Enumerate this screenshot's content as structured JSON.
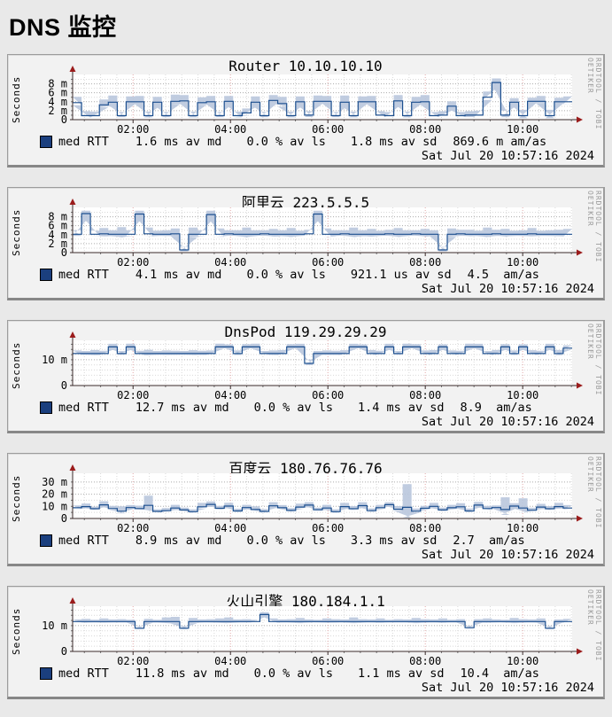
{
  "page": {
    "heading": "DNS 监控"
  },
  "watermark": "RRDTOOL / TOBI OETIKER",
  "colors": {
    "page_background": "#e9e9e9",
    "panel_background": "#f2f2f2",
    "plot_background": "#ffffff",
    "median_line": "#1c4f8f",
    "smoke": "#b9c7dd",
    "legend_swatch": "#1b3f7e",
    "grid_minor": "#d9d9d9",
    "grid_major": "#ababab",
    "grid_major_x": "#e2a9a9",
    "axis": "#3a2a2a",
    "arrow": "#9b1c1c",
    "text": "#000000"
  },
  "chart_data": [
    {
      "type": "line",
      "title": "Router 10.10.10.10",
      "ylabel": "Seconds",
      "ylim": [
        0,
        9.5
      ],
      "y_unit": "ms",
      "yticks": [
        {
          "v": 0,
          "label": "0"
        },
        {
          "v": 2,
          "label": "2 m"
        },
        {
          "v": 4,
          "label": "4 m"
        },
        {
          "v": 6,
          "label": "6 m"
        },
        {
          "v": 8,
          "label": "8 m"
        }
      ],
      "y_minor_step": 1,
      "xticks": [
        {
          "f": 0.121,
          "label": "02:00"
        },
        {
          "f": 0.316,
          "label": "04:00"
        },
        {
          "f": 0.511,
          "label": "06:00"
        },
        {
          "f": 0.706,
          "label": "08:00"
        },
        {
          "f": 0.901,
          "label": "10:00"
        }
      ],
      "x_minor_per_major": 6,
      "series": [
        {
          "name": "med RTT",
          "median": [
            3.8,
            0.9,
            0.9,
            3.3,
            3.9,
            0.9,
            4.0,
            4.0,
            0.9,
            3.9,
            0.9,
            4.1,
            4.2,
            0.9,
            3.8,
            4.0,
            0.9,
            4.1,
            0.9,
            1.5,
            3.9,
            0.9,
            4.3,
            3.6,
            0.9,
            4.0,
            1.0,
            4.1,
            4.1,
            0.9,
            3.9,
            0.9,
            4.0,
            4.0,
            1.0,
            0.9,
            4.2,
            0.9,
            3.9,
            4.0,
            0.9,
            1.0,
            3.0,
            0.9,
            1.0,
            1.0,
            5.0,
            8.3,
            1.0,
            3.9,
            0.9,
            4.1,
            4.1,
            0.9,
            4.0,
            4.0
          ],
          "smoke_halfwidth": [
            1.3,
            1.0,
            0.9,
            1.2,
            1.5,
            0.8,
            1.2,
            1.3,
            0.9,
            1.2,
            0.8,
            1.5,
            1.3,
            0.9,
            1.2,
            1.3,
            0.8,
            1.2,
            0.9,
            1.0,
            1.3,
            0.8,
            1.2,
            1.5,
            0.9,
            1.2,
            0.9,
            1.3,
            1.2,
            0.8,
            1.5,
            0.9,
            1.2,
            1.3,
            0.9,
            0.8,
            1.3,
            0.9,
            1.2,
            1.5,
            0.8,
            0.9,
            1.1,
            0.8,
            0.9,
            1.0,
            1.3,
            0.9,
            1.0,
            0.9,
            1.3,
            0.8,
            1.2,
            1.3,
            0.9,
            1.2
          ]
        }
      ],
      "legend_stats": [
        "1.6 ms av md",
        "0.0 % av ls",
        "1.8 ms av sd",
        "869.6 m am/as"
      ],
      "timestamp": "Sat Jul 20 10:57:16 2024"
    },
    {
      "type": "line",
      "title": "阿里云 223.5.5.5",
      "ylabel": "Seconds",
      "ylim": [
        0,
        9.5
      ],
      "y_unit": "ms",
      "yticks": [
        {
          "v": 0,
          "label": "0"
        },
        {
          "v": 2,
          "label": "2 m"
        },
        {
          "v": 4,
          "label": "4 m"
        },
        {
          "v": 6,
          "label": "6 m"
        },
        {
          "v": 8,
          "label": "8 m"
        }
      ],
      "y_minor_step": 1,
      "xticks": [
        {
          "f": 0.121,
          "label": "02:00"
        },
        {
          "f": 0.316,
          "label": "04:00"
        },
        {
          "f": 0.511,
          "label": "06:00"
        },
        {
          "f": 0.706,
          "label": "08:00"
        },
        {
          "f": 0.901,
          "label": "10:00"
        }
      ],
      "x_minor_per_major": 6,
      "series": [
        {
          "name": "med RTT",
          "median": [
            4.1,
            8.7,
            4.1,
            4.2,
            4.1,
            4.1,
            4.1,
            8.6,
            4.2,
            4.1,
            4.1,
            4.2,
            0.6,
            4.1,
            4.1,
            8.5,
            4.1,
            4.2,
            4.1,
            4.1,
            4.1,
            4.2,
            4.1,
            4.1,
            4.1,
            4.1,
            4.2,
            8.6,
            4.1,
            4.1,
            4.2,
            4.1,
            4.1,
            4.1,
            4.1,
            4.2,
            4.1,
            4.1,
            4.2,
            4.1,
            4.1,
            0.6,
            4.1,
            4.2,
            4.1,
            4.1,
            4.1,
            4.2,
            4.1,
            4.1,
            4.1,
            4.2,
            4.1,
            4.1,
            4.1,
            4.1
          ],
          "smoke_halfwidth": [
            0.9,
            1.0,
            0.8,
            1.3,
            0.9,
            1.6,
            0.9,
            1.0,
            1.4,
            0.8,
            0.9,
            1.2,
            0.7,
            1.5,
            0.9,
            1.0,
            1.3,
            0.8,
            0.9,
            1.5,
            0.9,
            0.8,
            1.2,
            0.9,
            1.4,
            0.8,
            0.9,
            1.0,
            1.3,
            0.9,
            0.8,
            1.5,
            0.9,
            1.2,
            0.8,
            0.9,
            1.4,
            0.9,
            0.8,
            1.2,
            0.9,
            0.7,
            1.3,
            0.9,
            1.0,
            0.8,
            1.5,
            0.9,
            1.2,
            0.8,
            0.9,
            1.3,
            0.8,
            0.9,
            1.0,
            1.2
          ]
        }
      ],
      "legend_stats": [
        "4.1 ms av md",
        "0.0 % av ls",
        "921.1 us av sd",
        "4.5  am/as"
      ],
      "timestamp": "Sat Jul 20 10:57:16 2024"
    },
    {
      "type": "line",
      "title": "DnsPod 119.29.29.29",
      "ylabel": "Seconds",
      "ylim": [
        0,
        16.5
      ],
      "y_unit": "ms",
      "yticks": [
        {
          "v": 0,
          "label": "0"
        },
        {
          "v": 10,
          "label": "10 m"
        }
      ],
      "y_minor_step": 2,
      "xticks": [
        {
          "f": 0.121,
          "label": "02:00"
        },
        {
          "f": 0.316,
          "label": "04:00"
        },
        {
          "f": 0.511,
          "label": "06:00"
        },
        {
          "f": 0.706,
          "label": "08:00"
        },
        {
          "f": 0.901,
          "label": "10:00"
        }
      ],
      "x_minor_per_major": 6,
      "series": [
        {
          "name": "med RTT",
          "median": [
            12.4,
            12.4,
            12.4,
            12.4,
            15.0,
            12.4,
            15.0,
            12.4,
            12.4,
            12.4,
            12.4,
            12.4,
            12.4,
            12.4,
            12.4,
            12.4,
            15.0,
            15.0,
            12.4,
            15.0,
            15.0,
            12.4,
            12.4,
            12.4,
            15.0,
            15.0,
            8.6,
            12.4,
            12.4,
            12.4,
            12.4,
            15.0,
            15.0,
            12.4,
            12.4,
            15.0,
            12.4,
            15.0,
            15.0,
            12.4,
            12.4,
            15.0,
            12.4,
            12.4,
            15.0,
            15.0,
            12.4,
            12.4,
            15.0,
            12.4,
            15.0,
            12.4,
            12.4,
            15.0,
            12.4,
            14.5
          ],
          "smoke_halfwidth": [
            1.2,
            1.0,
            1.4,
            1.1,
            1.2,
            1.0,
            1.3,
            1.1,
            1.5,
            1.0,
            1.2,
            1.1,
            1.0,
            1.3,
            1.1,
            1.2,
            1.4,
            1.0,
            1.2,
            1.1,
            1.3,
            1.0,
            1.2,
            1.4,
            1.1,
            1.2,
            1.5,
            1.0,
            1.2,
            1.1,
            1.3,
            1.2,
            1.0,
            1.4,
            1.1,
            1.2,
            1.0,
            1.3,
            1.1,
            1.2,
            1.4,
            1.0,
            1.2,
            1.1,
            1.3,
            1.2,
            1.0,
            1.4,
            1.1,
            1.2,
            1.0,
            1.3,
            1.1,
            1.2,
            1.4,
            1.1
          ]
        }
      ],
      "legend_stats": [
        "12.7 ms av md",
        "0.0 % av ls",
        "1.4 ms av sd",
        "8.9  am/as"
      ],
      "timestamp": "Sat Jul 20 10:57:16 2024"
    },
    {
      "type": "line",
      "title": "百度云 180.76.76.76",
      "ylabel": "Seconds",
      "ylim": [
        0,
        35
      ],
      "y_unit": "ms",
      "yticks": [
        {
          "v": 0,
          "label": "0"
        },
        {
          "v": 10,
          "label": "10 m"
        },
        {
          "v": 20,
          "label": "20 m"
        },
        {
          "v": 30,
          "label": "30 m"
        }
      ],
      "y_minor_step": 5,
      "xticks": [
        {
          "f": 0.121,
          "label": "02:00"
        },
        {
          "f": 0.316,
          "label": "04:00"
        },
        {
          "f": 0.511,
          "label": "06:00"
        },
        {
          "f": 0.706,
          "label": "08:00"
        },
        {
          "f": 0.901,
          "label": "10:00"
        }
      ],
      "x_minor_per_major": 6,
      "series": [
        {
          "name": "med RTT",
          "median": [
            8.8,
            9.8,
            8.0,
            11.2,
            8.2,
            6.0,
            9.0,
            8.2,
            10.8,
            5.8,
            6.4,
            8.6,
            7.0,
            5.6,
            9.6,
            11.6,
            8.4,
            10.2,
            6.2,
            9.0,
            7.4,
            5.8,
            10.4,
            8.8,
            6.6,
            9.4,
            11.0,
            7.2,
            8.6,
            5.6,
            9.8,
            8.0,
            10.6,
            6.4,
            8.8,
            11.4,
            7.6,
            9.2,
            6.0,
            8.4,
            10.0,
            7.0,
            8.8,
            9.6,
            6.2,
            11.0,
            8.2,
            9.0,
            7.4,
            10.2,
            8.6,
            6.8,
            9.4,
            8.0,
            9.8,
            8.6
          ],
          "smoke_halfwidth": [
            2.0,
            2.5,
            1.8,
            3.0,
            2.2,
            4.0,
            2.0,
            2.4,
            8.0,
            1.8,
            2.2,
            2.6,
            1.9,
            2.0,
            3.2,
            2.4,
            2.0,
            2.8,
            1.8,
            2.2,
            2.6,
            1.9,
            3.0,
            2.2,
            2.0,
            2.8,
            2.4,
            1.8,
            2.6,
            2.0,
            3.0,
            2.2,
            2.8,
            1.9,
            2.4,
            2.0,
            2.6,
            19.0,
            2.2,
            2.0,
            2.8,
            1.9,
            2.4,
            3.0,
            2.0,
            2.6,
            2.2,
            1.8,
            10.0,
            2.4,
            8.0,
            2.0,
            2.6,
            2.2,
            3.0,
            2.4
          ]
        }
      ],
      "legend_stats": [
        "8.9 ms av md",
        "0.0 % av ls",
        "3.3 ms av sd",
        "2.7  am/as"
      ],
      "timestamp": "Sat Jul 20 10:57:16 2024"
    },
    {
      "type": "line",
      "title": "火山引擎 180.184.1.1",
      "ylabel": "Seconds",
      "ylim": [
        0,
        16.5
      ],
      "y_unit": "ms",
      "yticks": [
        {
          "v": 0,
          "label": "0"
        },
        {
          "v": 10,
          "label": "10 m"
        }
      ],
      "y_minor_step": 2,
      "xticks": [
        {
          "f": 0.121,
          "label": "02:00"
        },
        {
          "f": 0.316,
          "label": "04:00"
        },
        {
          "f": 0.511,
          "label": "06:00"
        },
        {
          "f": 0.706,
          "label": "08:00"
        },
        {
          "f": 0.901,
          "label": "10:00"
        }
      ],
      "x_minor_per_major": 6,
      "series": [
        {
          "name": "med RTT",
          "median": [
            11.6,
            11.6,
            11.6,
            11.6,
            11.6,
            11.6,
            11.6,
            9.0,
            11.6,
            11.6,
            11.6,
            11.6,
            9.0,
            11.6,
            11.6,
            11.6,
            11.6,
            11.6,
            11.6,
            11.6,
            11.6,
            14.3,
            11.6,
            11.6,
            11.6,
            11.6,
            11.6,
            11.6,
            11.6,
            11.6,
            11.6,
            11.6,
            11.6,
            11.6,
            11.6,
            11.6,
            11.6,
            11.6,
            11.6,
            11.6,
            11.6,
            11.6,
            11.6,
            11.6,
            9.2,
            11.6,
            11.6,
            11.6,
            11.6,
            11.6,
            11.6,
            11.6,
            11.6,
            9.0,
            11.6,
            11.6
          ],
          "smoke_halfwidth": [
            0.8,
            1.0,
            0.7,
            1.2,
            0.8,
            0.9,
            0.7,
            0.8,
            1.0,
            0.7,
            1.6,
            1.8,
            0.9,
            1.4,
            0.8,
            0.9,
            1.2,
            1.6,
            0.8,
            0.9,
            0.7,
            0.9,
            1.2,
            0.8,
            0.9,
            1.4,
            0.8,
            0.7,
            1.2,
            0.9,
            0.8,
            1.6,
            0.9,
            0.8,
            1.2,
            0.7,
            0.9,
            0.8,
            1.4,
            0.9,
            0.8,
            1.2,
            0.7,
            0.9,
            0.8,
            0.9,
            1.2,
            0.8,
            0.7,
            1.4,
            0.9,
            0.8,
            1.2,
            0.9,
            0.8,
            1.0
          ]
        }
      ],
      "legend_stats": [
        "11.8 ms av md",
        "0.0 % av ls",
        "1.1 ms av sd",
        "10.4  am/as"
      ],
      "timestamp": "Sat Jul 20 10:57:16 2024"
    }
  ]
}
